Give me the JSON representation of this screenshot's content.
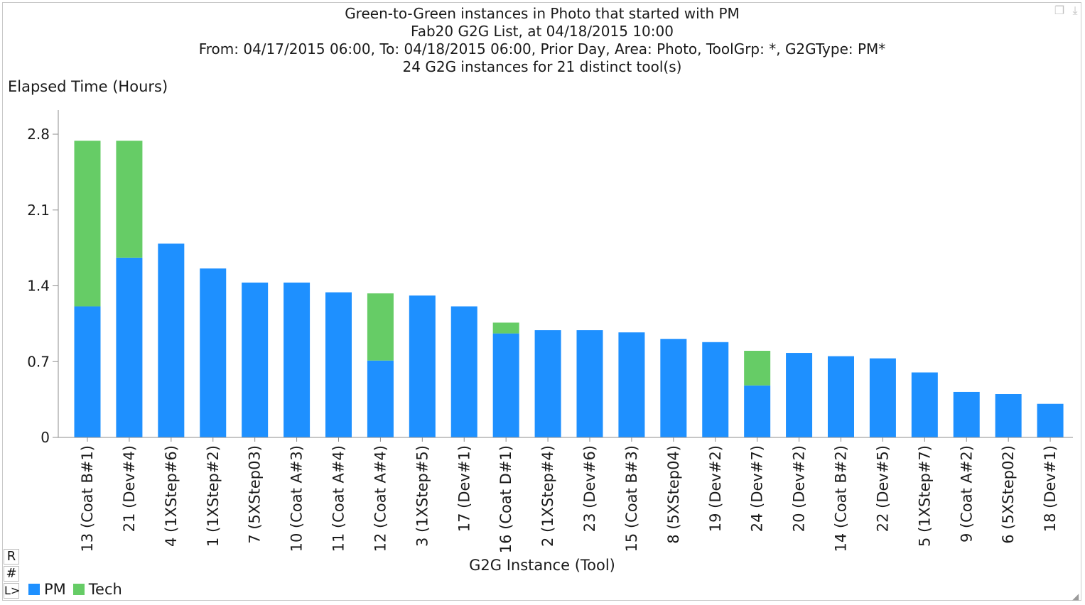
{
  "header_icons": [
    {
      "name": "copy-icon",
      "glyph": "❐"
    },
    {
      "name": "download-icon",
      "glyph": "⤓"
    }
  ],
  "side_buttons": [
    "R",
    "#",
    "L>"
  ],
  "colors": {
    "PM": "#1e90ff",
    "Tech": "#66cc66",
    "axis": "#8c8c8c"
  },
  "chart_data": {
    "type": "bar",
    "stacked": true,
    "title": [
      "Green-to-Green instances in Photo that started with PM",
      "Fab20 G2G List, at 04/18/2015 10:00",
      "From: 04/17/2015 06:00, To: 04/18/2015 06:00, Prior Day, Area: Photo, ToolGrp: *, G2GType: PM*",
      "24 G2G instances for 21 distinct tool(s)"
    ],
    "ylabel": "Elapsed Time (Hours)",
    "xlabel": "G2G Instance (Tool)",
    "ylim": [
      0,
      2.8
    ],
    "yticks": [
      "0",
      "0.7",
      "1.4",
      "2.1",
      "2.8"
    ],
    "grid": false,
    "legend_position": "bottom-left",
    "categories": [
      "13 (Coat B#1)",
      "21 (Dev#4)",
      "4 (1XStep#6)",
      "1 (1XStep#2)",
      "7 (5XStep03)",
      "10 (Coat A#3)",
      "11 (Coat A#4)",
      "12 (Coat A#4)",
      "3 (1XStep#5)",
      "17 (Dev#1)",
      "16 (Coat D#1)",
      "2 (1XStep#4)",
      "23 (Dev#6)",
      "15 (Coat B#3)",
      "8 (5XStep04)",
      "19 (Dev#2)",
      "24 (Dev#7)",
      "20 (Dev#2)",
      "14 (Coat B#2)",
      "22 (Dev#5)",
      "5 (1XStep#7)",
      "9 (Coat A#2)",
      "6 (5XStep02)",
      "18 (Dev#1)"
    ],
    "series": [
      {
        "name": "PM",
        "values": [
          1.21,
          1.66,
          1.79,
          1.56,
          1.43,
          1.43,
          1.34,
          0.71,
          1.31,
          1.21,
          0.96,
          0.99,
          0.99,
          0.97,
          0.91,
          0.88,
          0.48,
          0.78,
          0.75,
          0.73,
          0.6,
          0.42,
          0.4,
          0.31
        ]
      },
      {
        "name": "Tech",
        "values": [
          1.53,
          1.08,
          0,
          0,
          0,
          0,
          0,
          0.62,
          0,
          0,
          0.1,
          0,
          0,
          0,
          0,
          0,
          0.32,
          0,
          0,
          0,
          0,
          0,
          0,
          0
        ]
      }
    ]
  }
}
